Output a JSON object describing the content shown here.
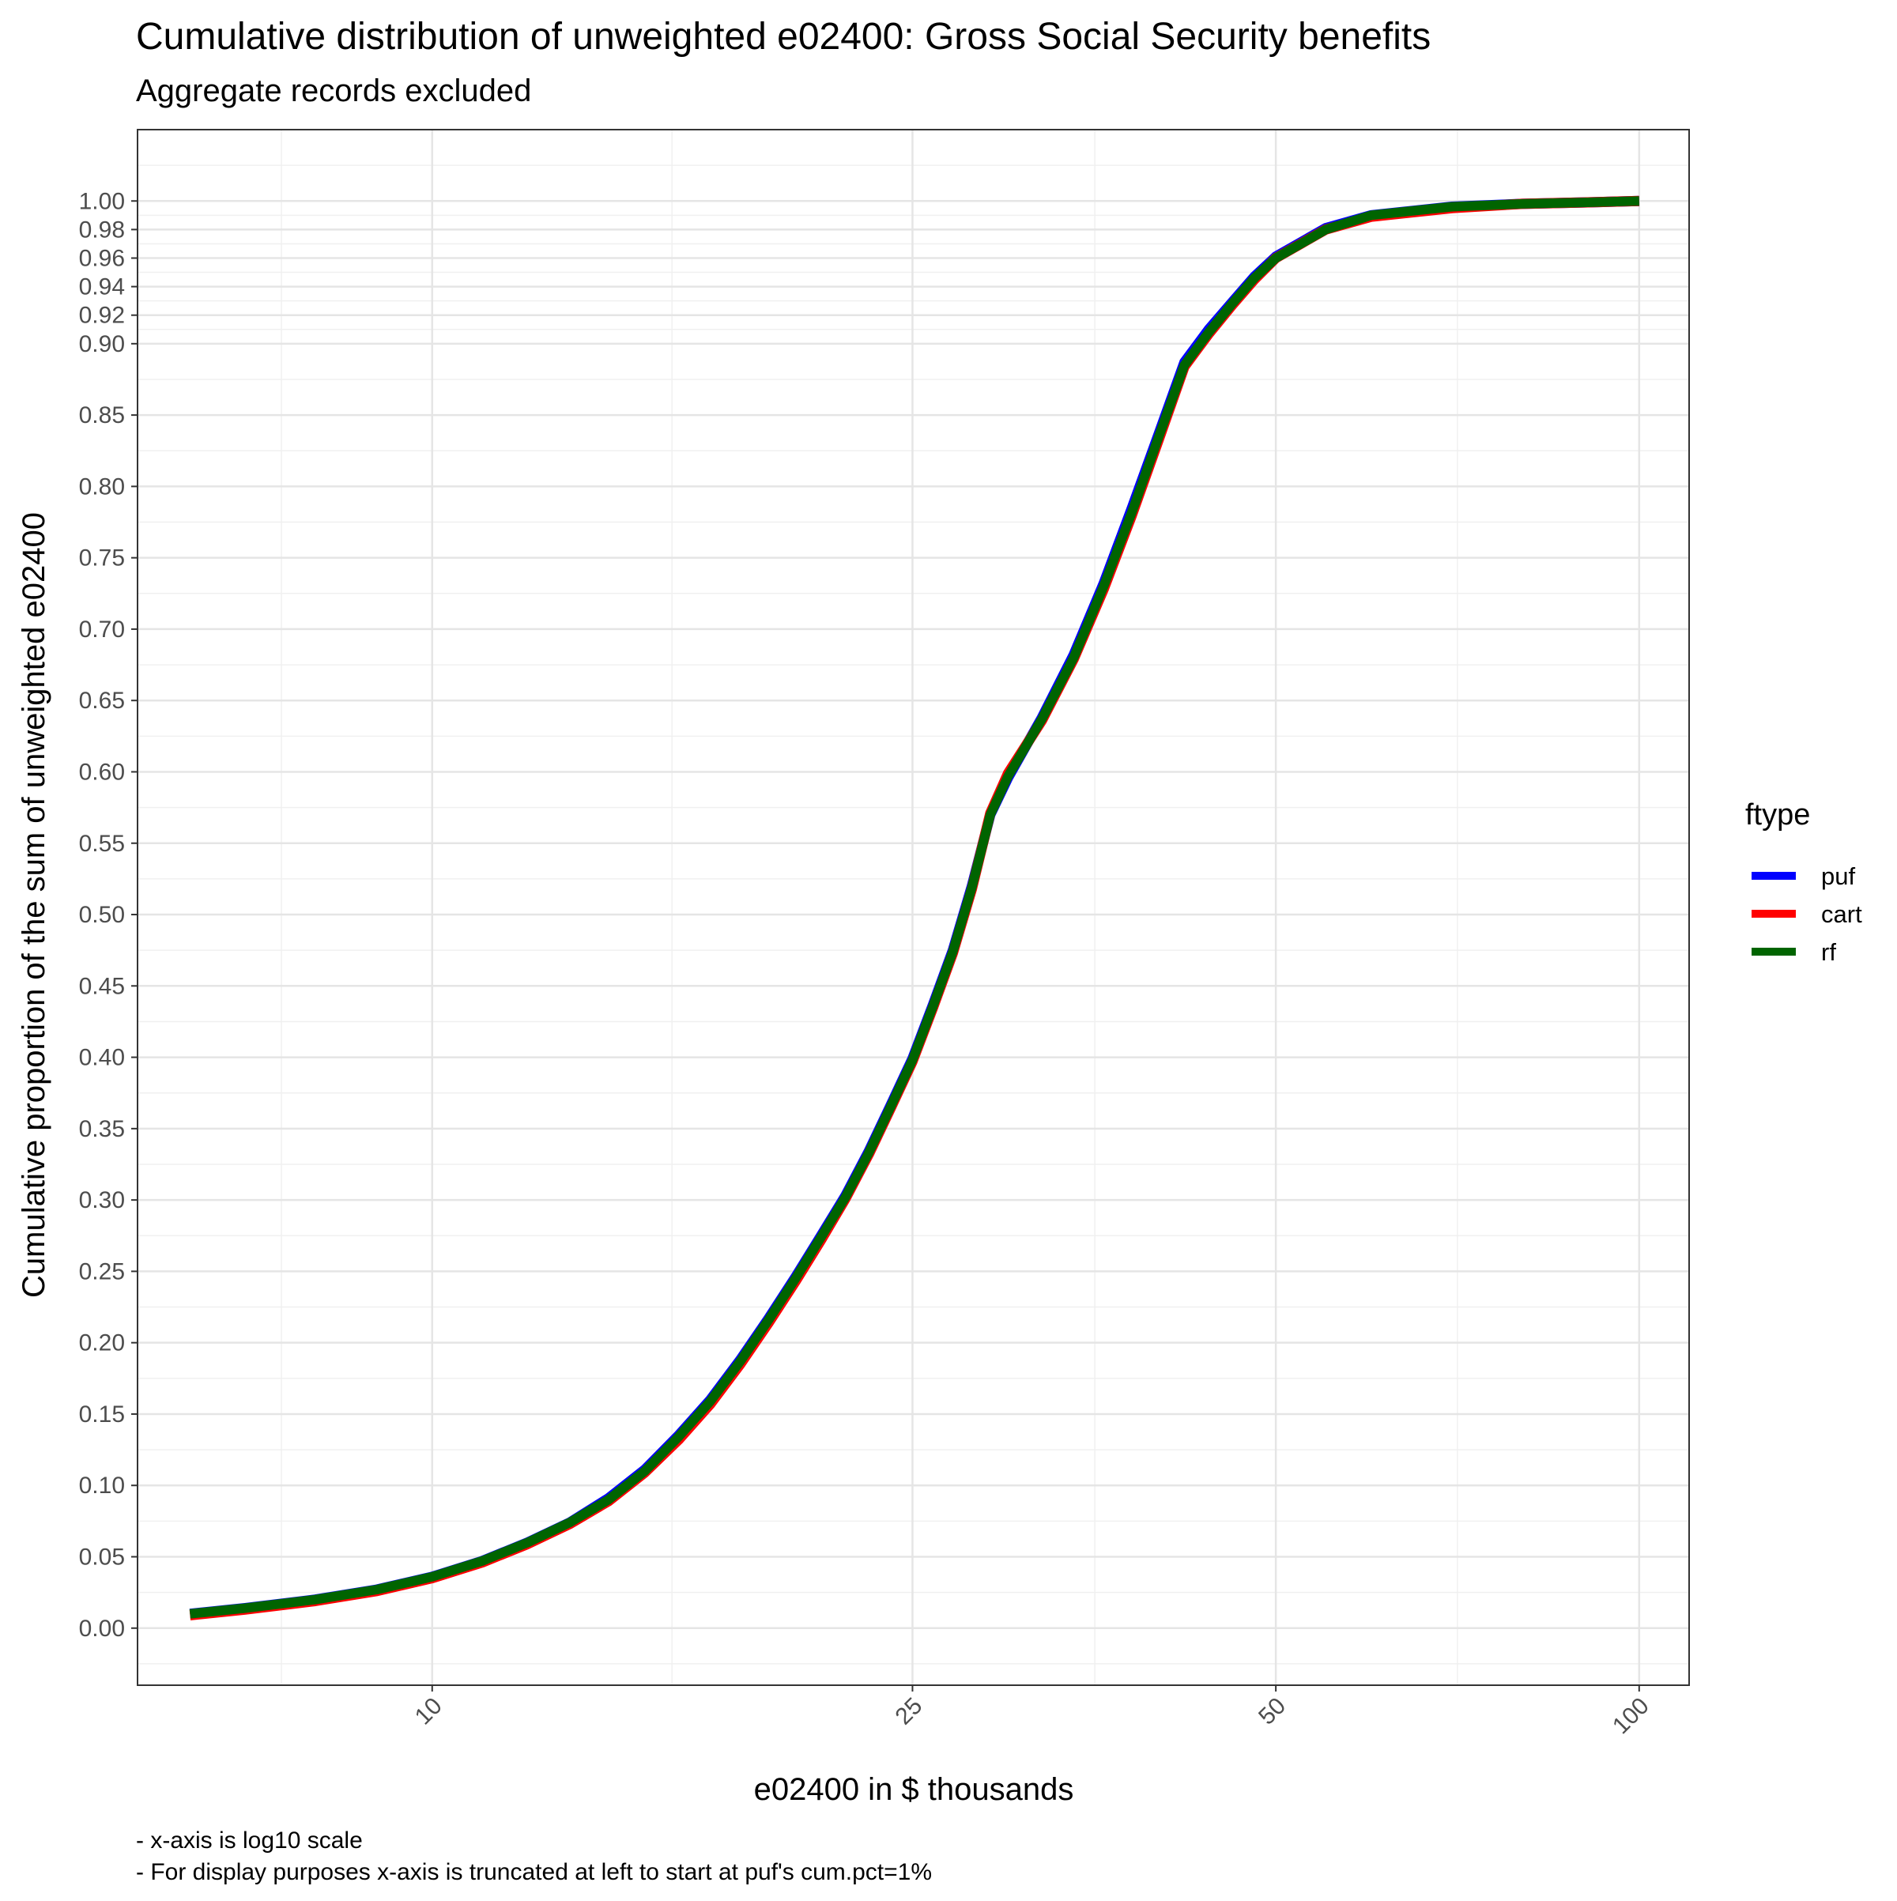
{
  "chart_data": {
    "type": "line",
    "title": "Cumulative distribution of unweighted e02400: Gross Social Security benefits",
    "subtitle": "Aggregate records excluded",
    "xlabel": "e02400 in $ thousands",
    "ylabel": "Cumulative proportion of the sum of unweighted e02400",
    "x_scale": "log10",
    "xlim": [
      5.7,
      110
    ],
    "ylim": [
      -0.04,
      1.05
    ],
    "x_ticks": [
      10,
      25,
      50,
      100
    ],
    "x_tick_labels": [
      "10",
      "25",
      "50",
      "100"
    ],
    "x_minor_gridlines": [
      7.5,
      15.8,
      35.4,
      70.7
    ],
    "y_ticks": [
      0.0,
      0.05,
      0.1,
      0.15,
      0.2,
      0.25,
      0.3,
      0.35,
      0.4,
      0.45,
      0.5,
      0.55,
      0.6,
      0.65,
      0.7,
      0.75,
      0.8,
      0.85,
      0.9,
      0.92,
      0.94,
      0.96,
      0.98,
      1.0
    ],
    "y_tick_labels": [
      "0.00",
      "0.05",
      "0.10",
      "0.15",
      "0.20",
      "0.25",
      "0.30",
      "0.35",
      "0.40",
      "0.45",
      "0.50",
      "0.55",
      "0.60",
      "0.65",
      "0.70",
      "0.75",
      "0.80",
      "0.85",
      "0.90",
      "0.92",
      "0.94",
      "0.96",
      "0.98",
      "1.00"
    ],
    "grid": true,
    "legend": {
      "title": "ftype",
      "position": "right"
    },
    "series": [
      {
        "name": "puf",
        "color": "#0000ff",
        "x": [
          6.3,
          7,
          8,
          9,
          10,
          11,
          12,
          13,
          14,
          15,
          16,
          17,
          18,
          19,
          20,
          21,
          22,
          23,
          24,
          25,
          26,
          27,
          28,
          29,
          30,
          32,
          34,
          36,
          38,
          40,
          42,
          44,
          46,
          48,
          50,
          55,
          60,
          70,
          80,
          90,
          100
        ],
        "y": [
          0.01,
          0.014,
          0.02,
          0.027,
          0.036,
          0.047,
          0.06,
          0.074,
          0.091,
          0.111,
          0.135,
          0.16,
          0.188,
          0.217,
          0.246,
          0.275,
          0.303,
          0.334,
          0.367,
          0.399,
          0.437,
          0.475,
          0.52,
          0.57,
          0.596,
          0.638,
          0.682,
          0.732,
          0.785,
          0.837,
          0.887,
          0.91,
          0.929,
          0.947,
          0.961,
          0.981,
          0.99,
          0.996,
          0.998,
          0.999,
          1.0
        ]
      },
      {
        "name": "cart",
        "color": "#ff0000",
        "x": [
          6.3,
          7,
          8,
          9,
          10,
          11,
          12,
          13,
          14,
          15,
          16,
          17,
          18,
          19,
          20,
          21,
          22,
          23,
          24,
          25,
          26,
          27,
          28,
          29,
          30,
          32,
          34,
          36,
          38,
          40,
          42,
          44,
          46,
          48,
          50,
          55,
          60,
          70,
          80,
          90,
          100
        ],
        "y": [
          0.009,
          0.013,
          0.019,
          0.026,
          0.035,
          0.046,
          0.059,
          0.073,
          0.089,
          0.109,
          0.132,
          0.157,
          0.185,
          0.214,
          0.243,
          0.272,
          0.301,
          0.332,
          0.365,
          0.397,
          0.435,
          0.473,
          0.518,
          0.571,
          0.599,
          0.636,
          0.679,
          0.728,
          0.78,
          0.833,
          0.884,
          0.907,
          0.927,
          0.945,
          0.96,
          0.98,
          0.989,
          0.995,
          0.998,
          0.999,
          1.0
        ]
      },
      {
        "name": "rf",
        "color": "#006400",
        "x": [
          6.3,
          7,
          8,
          9,
          10,
          11,
          12,
          13,
          14,
          15,
          16,
          17,
          18,
          19,
          20,
          21,
          22,
          23,
          24,
          25,
          26,
          27,
          28,
          29,
          30,
          32,
          34,
          36,
          38,
          40,
          42,
          44,
          46,
          48,
          50,
          55,
          60,
          70,
          80,
          90,
          100
        ],
        "y": [
          0.01,
          0.014,
          0.02,
          0.027,
          0.036,
          0.047,
          0.06,
          0.074,
          0.09,
          0.11,
          0.134,
          0.159,
          0.187,
          0.216,
          0.245,
          0.274,
          0.302,
          0.333,
          0.366,
          0.398,
          0.436,
          0.474,
          0.519,
          0.57,
          0.597,
          0.637,
          0.68,
          0.73,
          0.782,
          0.835,
          0.885,
          0.908,
          0.928,
          0.946,
          0.96,
          0.98,
          0.99,
          0.996,
          0.998,
          0.999,
          1.0
        ]
      }
    ],
    "caption": [
      "- x-axis is log10 scale",
      "- For display purposes x-axis is truncated at left to start at puf's cum.pct=1%"
    ]
  }
}
